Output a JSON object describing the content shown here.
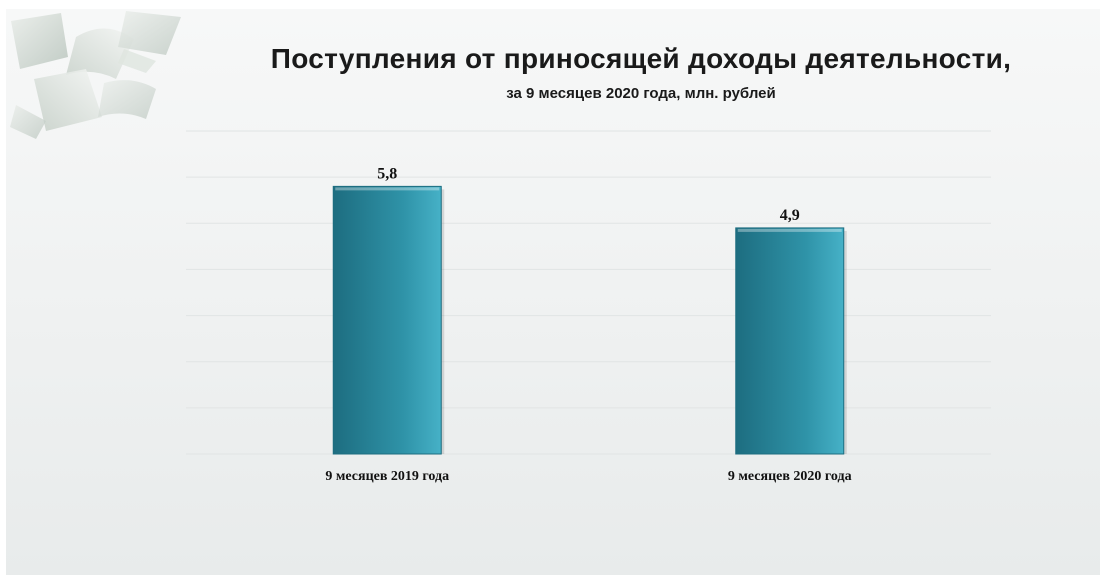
{
  "title": "Поступления от приносящей доходы деятельности,",
  "subtitle": "за 9 месяцев 2020 года, млн. рублей",
  "colors": {
    "bar": "#2f93a8",
    "bar_light": "#46b1c7",
    "bar_dark": "#1d6d80",
    "grid": "#e1e4e4"
  },
  "decoration_icon": "flying-paper-sheets",
  "chart_data": {
    "type": "bar",
    "categories": [
      "9 месяцев 2019 года",
      "9 месяцев 2020 года"
    ],
    "values": [
      5.8,
      4.9
    ],
    "value_labels": [
      "5,8",
      "4,9"
    ],
    "title": "Поступления от приносящей доходы деятельности,",
    "subtitle": "за 9 месяцев 2020 года, млн. рублей",
    "xlabel": "",
    "ylabel": "",
    "ylim": [
      0,
      7
    ],
    "grid": true,
    "legend": "none"
  }
}
